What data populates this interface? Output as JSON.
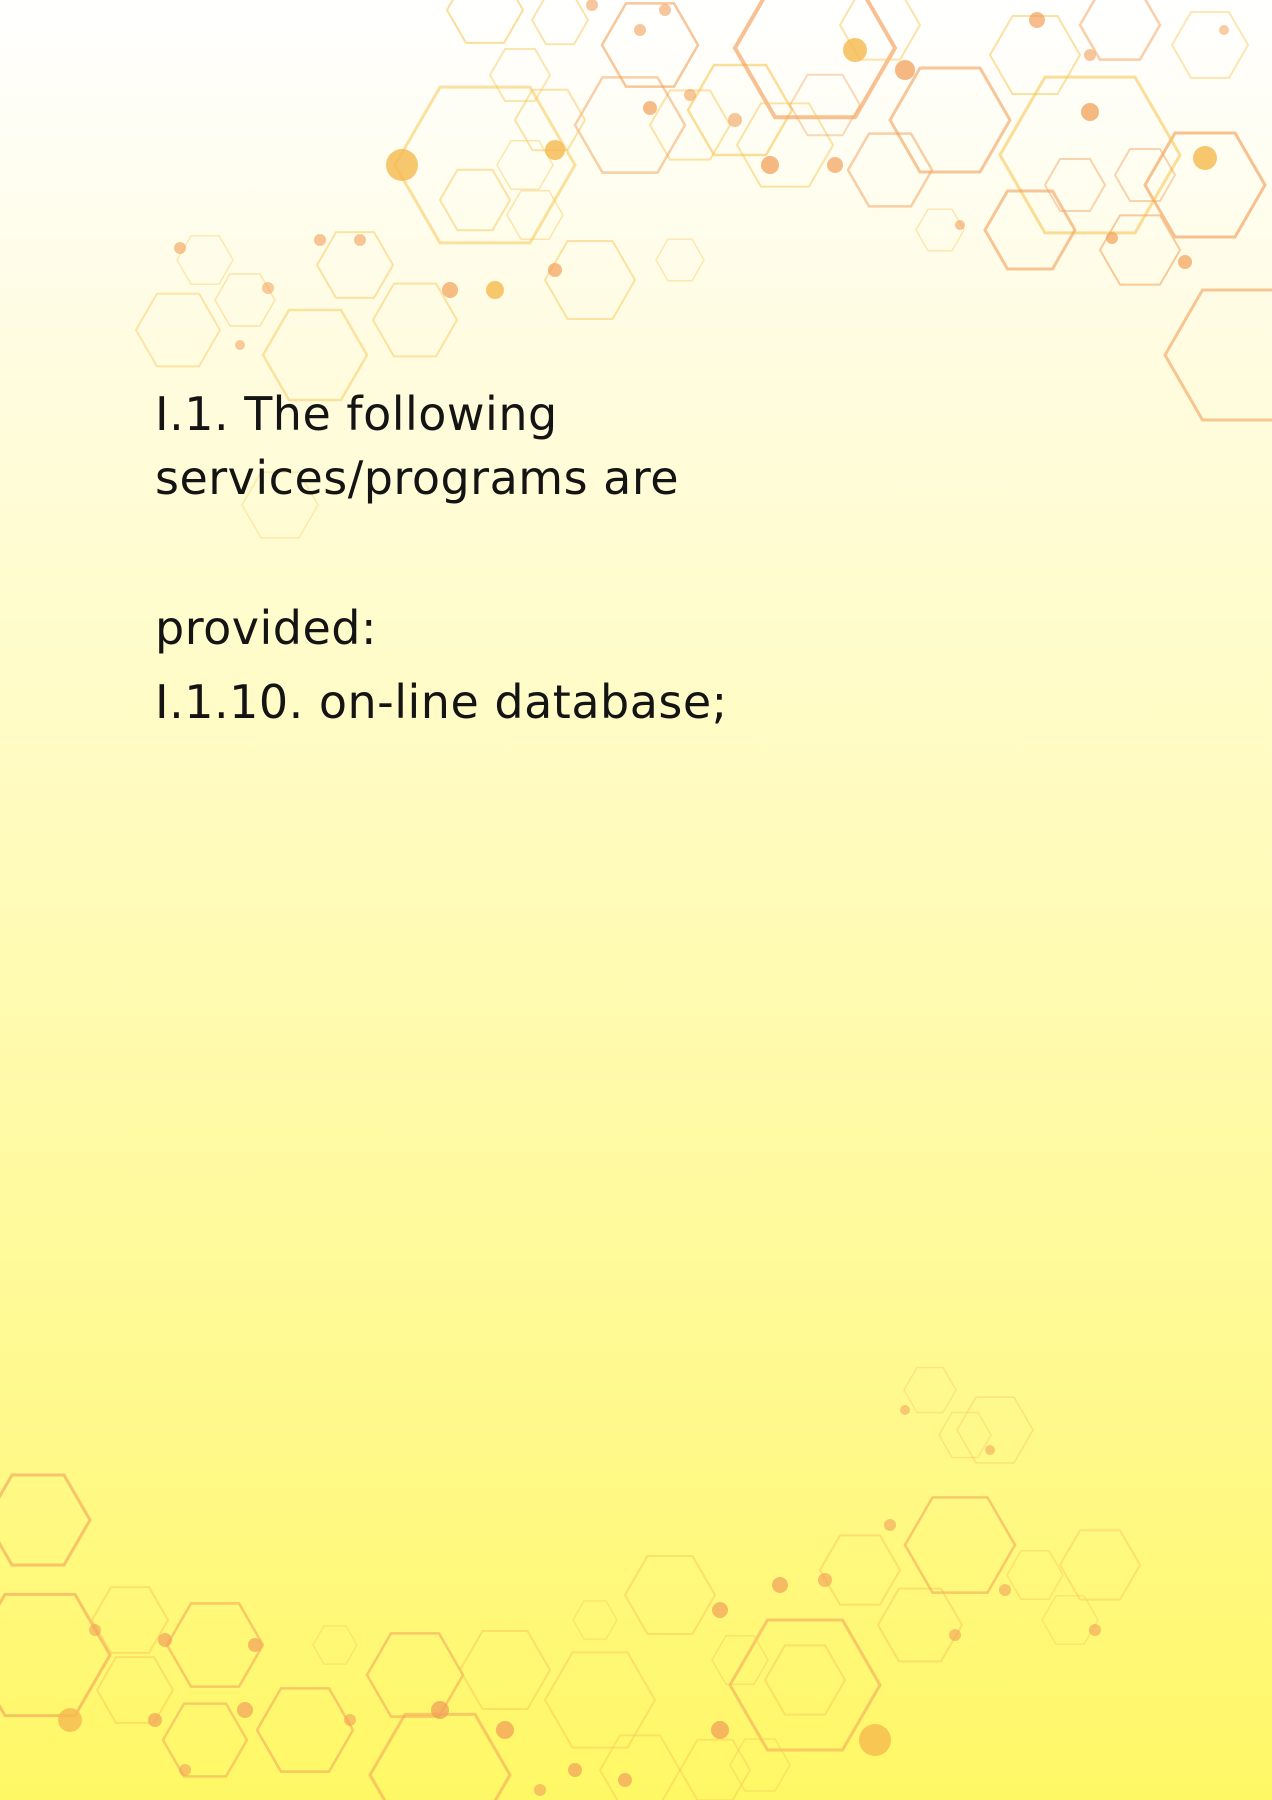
{
  "document": {
    "lines": [
      "I.1. The following",
      "services/programs are",
      "provided:",
      "I.1.10. on-line database;"
    ]
  },
  "decoration": {
    "pattern": "hexagon-network",
    "colors": {
      "yellow_stroke": "#f7c85a",
      "orange_stroke": "#f2a05a",
      "dot_color": "#f5b94d",
      "background_top": "#ffffff",
      "background_bottom": "#fff865"
    }
  }
}
